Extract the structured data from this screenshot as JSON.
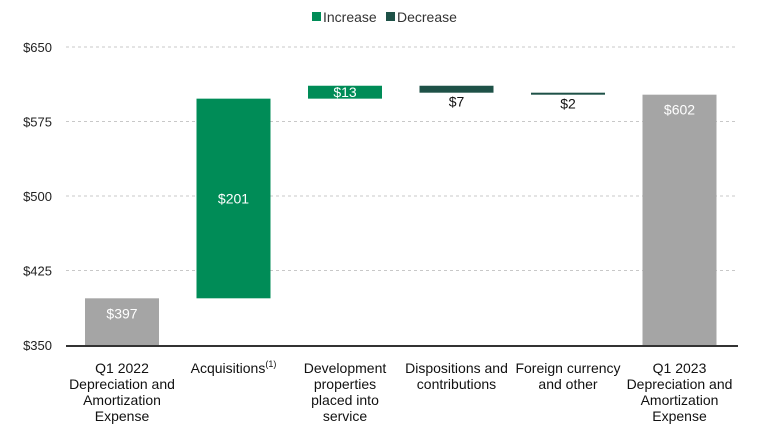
{
  "colors": {
    "increase": "#008c57",
    "decrease": "#1e5147",
    "total": "#a5a5a5"
  },
  "chart_data": {
    "type": "bar",
    "subtype": "waterfall",
    "title": "",
    "xlabel": "",
    "ylabel": "",
    "ylim": [
      350,
      650
    ],
    "yticks": [
      350,
      425,
      500,
      575,
      650
    ],
    "ytick_labels": [
      "$350",
      "$425",
      "$500",
      "$575",
      "$650"
    ],
    "grid": true,
    "legend": {
      "placement": "top-center",
      "entries": [
        {
          "name": "Increase",
          "color": "#008c57"
        },
        {
          "name": "Decrease",
          "color": "#1e5147"
        }
      ]
    },
    "categories": [
      [
        "Q1 2022",
        "Depreciation and",
        "Amortization",
        "Expense"
      ],
      [
        "Acquisitions"
      ],
      [
        "Development",
        "properties",
        "placed into",
        "service"
      ],
      [
        "Dispositions and",
        "contributions"
      ],
      [
        "Foreign currency",
        "and other"
      ],
      [
        "Q1 2023",
        "Depreciation and",
        "Amortization",
        "Expense"
      ]
    ],
    "footnotes": [
      "",
      "(1)",
      "",
      "",
      "",
      ""
    ],
    "bars": [
      {
        "kind": "total",
        "start": 350,
        "end": 397,
        "label": "$397"
      },
      {
        "kind": "increase",
        "start": 397,
        "end": 598,
        "label": "$201"
      },
      {
        "kind": "increase",
        "start": 598,
        "end": 611,
        "label": "$13"
      },
      {
        "kind": "decrease",
        "start": 611,
        "end": 604,
        "label": "$7"
      },
      {
        "kind": "decrease",
        "start": 604,
        "end": 602,
        "label": "$2"
      },
      {
        "kind": "total",
        "start": 350,
        "end": 602,
        "label": "$602"
      }
    ]
  }
}
